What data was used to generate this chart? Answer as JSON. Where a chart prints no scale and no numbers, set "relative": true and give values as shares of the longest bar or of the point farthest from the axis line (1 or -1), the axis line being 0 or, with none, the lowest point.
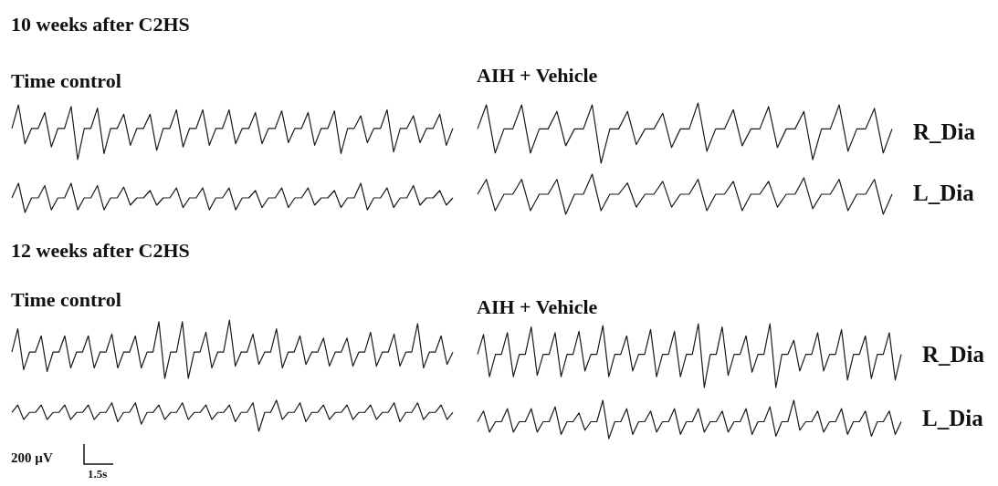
{
  "chart_data": [
    {
      "type": "line",
      "title": "10 weeks after C2HS",
      "subtitle": "Time control",
      "relative": true,
      "tick_labels": false,
      "categories": [
        null,
        null,
        null,
        null,
        null,
        null,
        null,
        null,
        null,
        null,
        null,
        null,
        null,
        null,
        null,
        null,
        null,
        null,
        null,
        null,
        null,
        null,
        null,
        null,
        null,
        null,
        null,
        null,
        null,
        null,
        null,
        null,
        null,
        null,
        null,
        null,
        null,
        null,
        null,
        null,
        null,
        null,
        null,
        null,
        null,
        null,
        null,
        null,
        null,
        null,
        null,
        null,
        null,
        null,
        null,
        null,
        null,
        null,
        null,
        null,
        null,
        null,
        null,
        null,
        null,
        null,
        null,
        null
      ],
      "series": [
        {
          "color": "#1a1a1a",
          "values": [
            0.57,
            1,
            0.29,
            0.57,
            0.57,
            0.86,
            0.23,
            0.57,
            0.57,
            0.97,
            0,
            0.57,
            0.57,
            0.94,
            0.11,
            0.57,
            0.57,
            0.83,
            0.26,
            0.57,
            0.57,
            0.83,
            0.17,
            0.57,
            0.57,
            0.91,
            0.23,
            0.57,
            0.57,
            0.91,
            0.26,
            0.57,
            0.57,
            0.91,
            0.29,
            0.57,
            0.57,
            0.86,
            0.29,
            0.57,
            0.57,
            0.89,
            0.31,
            0.57,
            0.57,
            0.86,
            0.26,
            0.57,
            0.57,
            0.89,
            0.11,
            0.57,
            0.57,
            0.8,
            0.31,
            0.57,
            0.57,
            0.91,
            0.14,
            0.57,
            0.57,
            0.8,
            0.31,
            0.57,
            0.57,
            0.83,
            0.26,
            0.57
          ]
        }
      ]
    },
    {
      "type": "line",
      "relative": true,
      "tick_labels": false,
      "categories": [
        null,
        null,
        null,
        null,
        null,
        null,
        null,
        null,
        null,
        null,
        null,
        null,
        null,
        null,
        null,
        null,
        null,
        null,
        null,
        null,
        null,
        null,
        null,
        null,
        null,
        null,
        null,
        null,
        null,
        null,
        null,
        null,
        null,
        null,
        null,
        null,
        null,
        null,
        null,
        null,
        null,
        null,
        null,
        null,
        null,
        null,
        null,
        null,
        null,
        null,
        null,
        null,
        null,
        null,
        null,
        null,
        null,
        null,
        null,
        null,
        null,
        null,
        null,
        null,
        null,
        null,
        null,
        null
      ],
      "series": [
        {
          "color": "#1a1a1a",
          "values": [
            0.5,
            1,
            0,
            0.5,
            0.5,
            0.92,
            0.09,
            0.5,
            0.5,
            1,
            0.09,
            0.5,
            0.5,
            0.92,
            0.09,
            0.5,
            0.5,
            0.87,
            0.25,
            0.5,
            0.5,
            0.75,
            0.25,
            0.5,
            0.5,
            0.84,
            0.17,
            0.5,
            0.5,
            0.84,
            0.09,
            0.5,
            0.5,
            0.84,
            0.09,
            0.5,
            0.5,
            0.75,
            0.17,
            0.5,
            0.5,
            0.84,
            0.17,
            0.5,
            0.5,
            0.84,
            0.25,
            0.5,
            0.5,
            0.75,
            0.17,
            0.5,
            0.5,
            1,
            0.09,
            0.5,
            0.5,
            0.84,
            0.17,
            0.5,
            0.5,
            0.92,
            0.25,
            0.5,
            0.5,
            0.75,
            0.25,
            0.5
          ]
        }
      ]
    },
    {
      "type": "line",
      "subtitle": "AIH + Vehicle",
      "relative": true,
      "tick_labels": false,
      "categories": [
        null,
        null,
        null,
        null,
        null,
        null,
        null,
        null,
        null,
        null,
        null,
        null,
        null,
        null,
        null,
        null,
        null,
        null,
        null,
        null,
        null,
        null,
        null,
        null,
        null,
        null,
        null,
        null,
        null,
        null,
        null,
        null,
        null,
        null,
        null,
        null,
        null,
        null,
        null,
        null,
        null,
        null,
        null,
        null,
        null,
        null,
        null,
        null
      ],
      "series": [
        {
          "name": "R_Dia",
          "color": "#1a1a1a",
          "values": [
            0.57,
            0.97,
            0.17,
            0.57,
            0.57,
            0.97,
            0.17,
            0.57,
            0.57,
            0.86,
            0.29,
            0.57,
            0.57,
            0.97,
            0,
            0.57,
            0.57,
            0.86,
            0.31,
            0.57,
            0.57,
            0.83,
            0.26,
            0.57,
            0.57,
            1,
            0.2,
            0.57,
            0.57,
            0.89,
            0.29,
            0.57,
            0.57,
            0.94,
            0.26,
            0.57,
            0.57,
            0.86,
            0.06,
            0.57,
            0.57,
            0.97,
            0.2,
            0.57,
            0.57,
            0.91,
            0.17,
            0.57
          ]
        }
      ]
    },
    {
      "type": "line",
      "relative": true,
      "tick_labels": false,
      "categories": [
        null,
        null,
        null,
        null,
        null,
        null,
        null,
        null,
        null,
        null,
        null,
        null,
        null,
        null,
        null,
        null,
        null,
        null,
        null,
        null,
        null,
        null,
        null,
        null,
        null,
        null,
        null,
        null,
        null,
        null,
        null,
        null,
        null,
        null,
        null,
        null,
        null,
        null,
        null,
        null,
        null,
        null,
        null,
        null,
        null,
        null,
        null,
        null
      ],
      "series": [
        {
          "name": "L_Dia",
          "color": "#1a1a1a",
          "values": [
            0.5,
            0.87,
            0.09,
            0.5,
            0.5,
            0.87,
            0.09,
            0.5,
            0.5,
            0.87,
            0,
            0.5,
            0.5,
            1,
            0.09,
            0.5,
            0.5,
            0.78,
            0.18,
            0.5,
            0.5,
            0.82,
            0.18,
            0.5,
            0.5,
            0.87,
            0.09,
            0.5,
            0.5,
            0.82,
            0.09,
            0.5,
            0.5,
            0.82,
            0.18,
            0.5,
            0.5,
            0.91,
            0.14,
            0.5,
            0.5,
            0.87,
            0.09,
            0.5,
            0.5,
            0.87,
            0,
            0.5
          ]
        }
      ]
    },
    {
      "type": "line",
      "title": "12 weeks after C2HS",
      "subtitle": "Time control",
      "relative": true,
      "tick_labels": false,
      "categories": [
        null,
        null,
        null,
        null,
        null,
        null,
        null,
        null,
        null,
        null,
        null,
        null,
        null,
        null,
        null,
        null,
        null,
        null,
        null,
        null,
        null,
        null,
        null,
        null,
        null,
        null,
        null,
        null,
        null,
        null,
        null,
        null,
        null,
        null,
        null,
        null,
        null,
        null,
        null,
        null,
        null,
        null,
        null,
        null,
        null,
        null,
        null,
        null,
        null,
        null,
        null,
        null,
        null,
        null,
        null,
        null,
        null,
        null,
        null,
        null,
        null,
        null,
        null,
        null,
        null,
        null,
        null,
        null,
        null,
        null,
        null,
        null,
        null,
        null,
        null,
        null
      ],
      "series": [
        {
          "color": "#1a1a1a",
          "values": [
            0.45,
            0.85,
            0.15,
            0.45,
            0.45,
            0.73,
            0.12,
            0.45,
            0.45,
            0.73,
            0.18,
            0.45,
            0.45,
            0.73,
            0.18,
            0.45,
            0.45,
            0.76,
            0.18,
            0.45,
            0.45,
            0.73,
            0.18,
            0.45,
            0.45,
            0.97,
            0,
            0.45,
            0.45,
            0.97,
            0,
            0.45,
            0.45,
            0.79,
            0.18,
            0.45,
            0.45,
            1,
            0.21,
            0.45,
            0.45,
            0.76,
            0.24,
            0.45,
            0.45,
            0.85,
            0.18,
            0.45,
            0.45,
            0.73,
            0.24,
            0.45,
            0.45,
            0.69,
            0.21,
            0.45,
            0.45,
            0.69,
            0.21,
            0.45,
            0.45,
            0.79,
            0.21,
            0.45,
            0.45,
            0.76,
            0.21,
            0.45,
            0.45,
            0.94,
            0.18,
            0.45,
            0.45,
            0.73,
            0.24,
            0.45
          ]
        }
      ]
    },
    {
      "type": "line",
      "relative": true,
      "tick_labels": false,
      "annotations": [
        "200 µV",
        "1.5s"
      ],
      "categories": [
        null,
        null,
        null,
        null,
        null,
        null,
        null,
        null,
        null,
        null,
        null,
        null,
        null,
        null,
        null,
        null,
        null,
        null,
        null,
        null,
        null,
        null,
        null,
        null,
        null,
        null,
        null,
        null,
        null,
        null,
        null,
        null,
        null,
        null,
        null,
        null,
        null,
        null,
        null,
        null,
        null,
        null,
        null,
        null,
        null,
        null,
        null,
        null,
        null,
        null,
        null,
        null,
        null,
        null,
        null,
        null,
        null,
        null,
        null,
        null,
        null,
        null,
        null,
        null,
        null,
        null,
        null,
        null,
        null,
        null,
        null,
        null,
        null,
        null,
        null,
        null
      ],
      "series": [
        {
          "color": "#1a1a1a",
          "values": [
            0.61,
            0.85,
            0.38,
            0.61,
            0.61,
            0.85,
            0.38,
            0.61,
            0.61,
            0.85,
            0.38,
            0.61,
            0.61,
            0.85,
            0.38,
            0.61,
            0.61,
            0.92,
            0.31,
            0.61,
            0.61,
            0.92,
            0.23,
            0.61,
            0.61,
            0.85,
            0.38,
            0.61,
            0.61,
            0.92,
            0.38,
            0.61,
            0.61,
            0.85,
            0.38,
            0.61,
            0.61,
            0.85,
            0.31,
            0.61,
            0.61,
            0.92,
            0,
            0.61,
            0.61,
            1,
            0.38,
            0.61,
            0.61,
            0.92,
            0.31,
            0.61,
            0.61,
            0.85,
            0.38,
            0.61,
            0.61,
            0.85,
            0.38,
            0.61,
            0.61,
            0.85,
            0.38,
            0.61,
            0.61,
            0.92,
            0.31,
            0.61,
            0.61,
            0.92,
            0.38,
            0.61,
            0.61,
            0.85,
            0.38,
            0.61
          ]
        }
      ]
    },
    {
      "type": "line",
      "subtitle": "AIH + Vehicle",
      "relative": true,
      "tick_labels": false,
      "categories": [
        null,
        null,
        null,
        null,
        null,
        null,
        null,
        null,
        null,
        null,
        null,
        null,
        null,
        null,
        null,
        null,
        null,
        null,
        null,
        null,
        null,
        null,
        null,
        null,
        null,
        null,
        null,
        null,
        null,
        null,
        null,
        null,
        null,
        null,
        null,
        null,
        null,
        null,
        null,
        null,
        null,
        null,
        null,
        null,
        null,
        null,
        null,
        null,
        null,
        null,
        null,
        null,
        null,
        null,
        null,
        null,
        null,
        null,
        null,
        null,
        null,
        null,
        null,
        null,
        null,
        null,
        null,
        null,
        null,
        null,
        null,
        null
      ],
      "series": [
        {
          "name": "R_Dia",
          "color": "#1a1a1a",
          "values": [
            0.52,
            0.83,
            0.17,
            0.52,
            0.52,
            0.86,
            0.17,
            0.52,
            0.52,
            0.95,
            0.19,
            0.52,
            0.52,
            0.86,
            0.17,
            0.52,
            0.52,
            0.88,
            0.26,
            0.52,
            0.52,
            0.97,
            0.17,
            0.52,
            0.52,
            0.81,
            0.26,
            0.52,
            0.52,
            0.91,
            0.17,
            0.52,
            0.52,
            0.88,
            0.17,
            0.52,
            0.52,
            1,
            0,
            0.52,
            0.52,
            0.95,
            0.19,
            0.52,
            0.52,
            0.81,
            0.24,
            0.52,
            0.52,
            1,
            0,
            0.52,
            0.52,
            0.74,
            0.26,
            0.52,
            0.52,
            0.86,
            0.26,
            0.52,
            0.52,
            0.91,
            0.12,
            0.52,
            0.52,
            0.81,
            0.14,
            0.52,
            0.52,
            0.86,
            0.12,
            0.52
          ]
        }
      ]
    },
    {
      "type": "line",
      "relative": true,
      "tick_labels": false,
      "categories": [
        null,
        null,
        null,
        null,
        null,
        null,
        null,
        null,
        null,
        null,
        null,
        null,
        null,
        null,
        null,
        null,
        null,
        null,
        null,
        null,
        null,
        null,
        null,
        null,
        null,
        null,
        null,
        null,
        null,
        null,
        null,
        null,
        null,
        null,
        null,
        null,
        null,
        null,
        null,
        null,
        null,
        null,
        null,
        null,
        null,
        null,
        null,
        null,
        null,
        null,
        null,
        null,
        null,
        null,
        null,
        null,
        null,
        null,
        null,
        null,
        null,
        null,
        null,
        null,
        null,
        null,
        null,
        null,
        null,
        null,
        null,
        null
      ],
      "series": [
        {
          "name": "L_Dia",
          "color": "#1a1a1a",
          "values": [
            0.44,
            0.72,
            0.17,
            0.44,
            0.44,
            0.78,
            0.17,
            0.44,
            0.44,
            0.78,
            0.17,
            0.44,
            0.44,
            0.83,
            0.11,
            0.44,
            0.44,
            0.67,
            0.22,
            0.44,
            0.44,
            1,
            0,
            0.44,
            0.44,
            0.78,
            0.11,
            0.44,
            0.44,
            0.72,
            0.17,
            0.44,
            0.44,
            0.78,
            0.11,
            0.44,
            0.44,
            0.78,
            0.17,
            0.44,
            0.44,
            0.72,
            0.17,
            0.44,
            0.44,
            0.78,
            0.11,
            0.44,
            0.44,
            0.83,
            0.06,
            0.44,
            0.44,
            1,
            0.22,
            0.44,
            0.44,
            0.72,
            0.17,
            0.44,
            0.44,
            0.78,
            0.11,
            0.44,
            0.44,
            0.72,
            0.06,
            0.44,
            0.44,
            0.72,
            0.11,
            0.44
          ]
        }
      ]
    }
  ]
}
